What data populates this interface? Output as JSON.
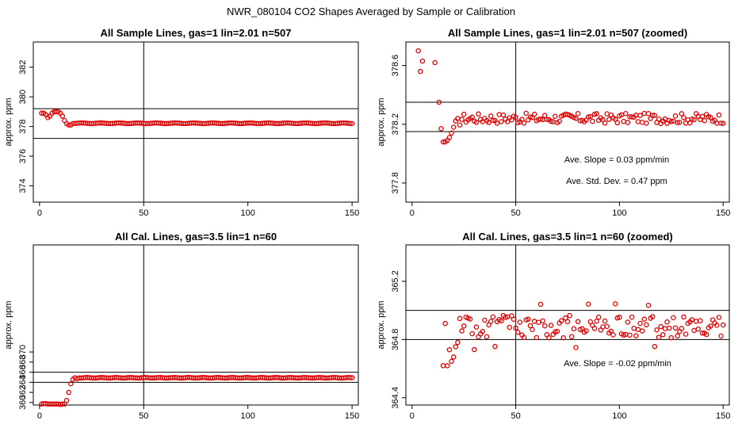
{
  "figure": {
    "title": "NWR_080104  CO2 Shapes Averaged by Sample or Calibration"
  },
  "chart_data": [
    {
      "type": "scatter",
      "title": "All Sample Lines, gas=1 lin=2.01 n=507",
      "xlabel": "",
      "ylabel": "approx. ppm",
      "xlim": [
        -3,
        153
      ],
      "ylim": [
        372.9,
        383.7
      ],
      "xticks": [
        0,
        50,
        100,
        150
      ],
      "yticks": [
        374,
        376,
        378,
        380,
        382
      ],
      "hlines": [
        379.2,
        377.2
      ],
      "vline": 50,
      "marker_color": "#e00000",
      "annotations": [],
      "shape": "sample",
      "series": [
        {
          "x": [],
          "y": []
        }
      ]
    },
    {
      "type": "scatter",
      "title": "All Sample Lines, gas=1 lin=2.01 n=507 (zoomed)",
      "xlabel": "",
      "ylabel": "approx. ppm",
      "xlim": [
        -3,
        153
      ],
      "ylim": [
        377.67,
        378.76
      ],
      "xticks": [
        0,
        50,
        100,
        150
      ],
      "yticks": [
        377.8,
        378.2,
        378.6
      ],
      "hlines": [
        378.35,
        378.15
      ],
      "vline": 50,
      "marker_color": "#e00000",
      "annotations": [
        "Ave. Slope =  0.03  ppm/min",
        "Ave. Std. Dev. =  0.47  ppm"
      ],
      "shape": "sample_zoom",
      "series": [
        {
          "x": [],
          "y": []
        }
      ]
    },
    {
      "type": "scatter",
      "title": "All Cal. Lines, gas=3.5 lin=1 n=60",
      "xlabel": "",
      "ylabel": "approx. ppm",
      "xlim": [
        -3,
        153
      ],
      "ylim": [
        359.5,
        391.2
      ],
      "xticks": [
        0,
        50,
        100,
        150
      ],
      "yticks": [
        360,
        362,
        364,
        366,
        368,
        370
      ],
      "hlines": [
        366,
        364
      ],
      "vline": 50,
      "marker_color": "#e00000",
      "annotations": [],
      "shape": "cal",
      "series": [
        {
          "x": [],
          "y": []
        }
      ]
    },
    {
      "type": "scatter",
      "title": "All Cal. Lines, gas=3.5 lin=1 n=60 (zoomed)",
      "xlabel": "",
      "ylabel": "approx. ppm",
      "xlim": [
        -3,
        153
      ],
      "ylim": [
        364.35,
        365.45
      ],
      "xticks": [
        0,
        50,
        100,
        150
      ],
      "yticks": [
        364.4,
        364.8,
        365.2
      ],
      "hlines": [
        365.0,
        364.8
      ],
      "vline": 50,
      "marker_color": "#e00000",
      "annotations": [
        "Ave. Slope =  -0.02  ppm/min"
      ],
      "shape": "cal_zoom",
      "series": [
        {
          "x": [],
          "y": []
        }
      ]
    }
  ]
}
